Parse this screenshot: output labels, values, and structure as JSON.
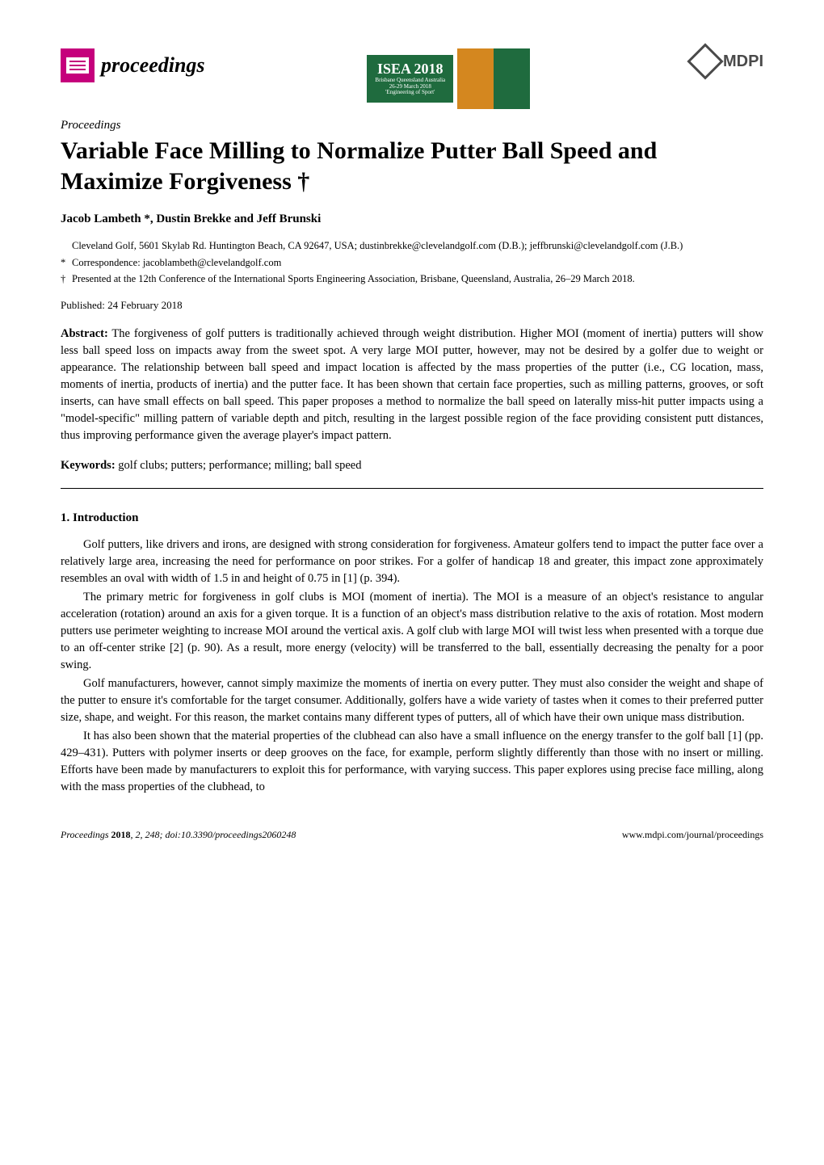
{
  "logos": {
    "proceedings_text": "proceedings",
    "isea_main": "ISEA 2018",
    "isea_sub1": "Brisbane Queensland Australia",
    "isea_sub2": "26-29 March 2018",
    "isea_sub3": "'Engineering of Sport'",
    "mdpi_text": "MDPI"
  },
  "proceedings_label": "Proceedings",
  "title": "Variable Face Milling to Normalize Putter Ball Speed and Maximize Forgiveness †",
  "authors": "Jacob Lambeth *, Dustin Brekke and Jeff Brunski",
  "affiliation": "Cleveland Golf, 5601 Skylab Rd. Huntington Beach, CA 92647, USA; dustinbrekke@clevelandgolf.com (D.B.); jeffbrunski@clevelandgolf.com (J.B.)",
  "correspondence_marker": "*",
  "correspondence": "Correspondence: jacoblambeth@clevelandgolf.com",
  "presented_marker": "†",
  "presented": "Presented at the 12th Conference of the International Sports Engineering Association, Brisbane, Queensland, Australia, 26–29 March 2018.",
  "published": "Published: 24 February 2018",
  "abstract_label": "Abstract:",
  "abstract": " The forgiveness of golf putters is traditionally achieved through weight distribution. Higher MOI (moment of inertia) putters will show less ball speed loss on impacts away from the sweet spot. A very large MOI putter, however, may not be desired by a golfer due to weight or appearance. The relationship between ball speed and impact location is affected by the mass properties of the putter (i.e., CG location, mass, moments of inertia, products of inertia) and the putter face. It has been shown that certain face properties, such as milling patterns, grooves, or soft inserts, can have small effects on ball speed. This paper proposes a method to normalize the ball speed on laterally miss-hit putter impacts using a \"model-specific\" milling pattern of variable depth and pitch, resulting in the largest possible region of the face providing consistent putt distances, thus improving performance given the average player's impact pattern.",
  "keywords_label": "Keywords:",
  "keywords": " golf clubs; putters; performance; milling; ball speed",
  "section1_heading": "1. Introduction",
  "paragraphs": {
    "p1": "Golf putters, like drivers and irons, are designed with strong consideration for forgiveness. Amateur golfers tend to impact the putter face over a relatively large area, increasing the need for performance on poor strikes. For a golfer of handicap 18 and greater, this impact zone approximately resembles an oval with width of 1.5 in and height of 0.75 in [1] (p. 394).",
    "p2": "The primary metric for forgiveness in golf clubs is MOI (moment of inertia). The MOI is a measure of an object's resistance to angular acceleration (rotation) around an axis for a given torque. It is a function of an object's mass distribution relative to the axis of rotation. Most modern putters use perimeter weighting to increase MOI around the vertical axis. A golf club with large MOI will twist less when presented with a torque due to an off-center strike [2] (p. 90). As a result, more energy (velocity) will be transferred to the ball, essentially decreasing the penalty for a poor swing.",
    "p3": "Golf manufacturers, however, cannot simply maximize the moments of inertia on every putter. They must also consider the weight and shape of the putter to ensure it's comfortable for the target consumer. Additionally, golfers have a wide variety of tastes when it comes to their preferred putter size, shape, and weight. For this reason, the market contains many different types of putters, all of which have their own unique mass distribution.",
    "p4": "It has also been shown that the material properties of the clubhead can also have a small influence on the energy transfer to the golf ball [1] (pp. 429–431). Putters with polymer inserts or deep grooves on the face, for example, perform slightly differently than those with no insert or milling. Efforts have been made by manufacturers to exploit this for performance, with varying success. This paper explores using precise face milling, along with the mass properties of the clubhead, to"
  },
  "footer": {
    "left_italic": "Proceedings ",
    "left_bold": "2018",
    "left_rest": ", 2, 248; doi:10.3390/proceedings2060248",
    "right": "www.mdpi.com/journal/proceedings"
  },
  "colors": {
    "logo_pink": "#c5007c",
    "isea_green": "#1f6b3e",
    "isea_orange": "#d4871f",
    "mdpi_gray": "#4a4a4a",
    "text_black": "#000000",
    "background": "#ffffff"
  },
  "typography": {
    "body_font": "Palatino Linotype",
    "body_size_pt": 10.5,
    "title_size_pt": 22,
    "authors_size_pt": 11,
    "affiliation_size_pt": 9,
    "section_heading_size_pt": 11
  }
}
